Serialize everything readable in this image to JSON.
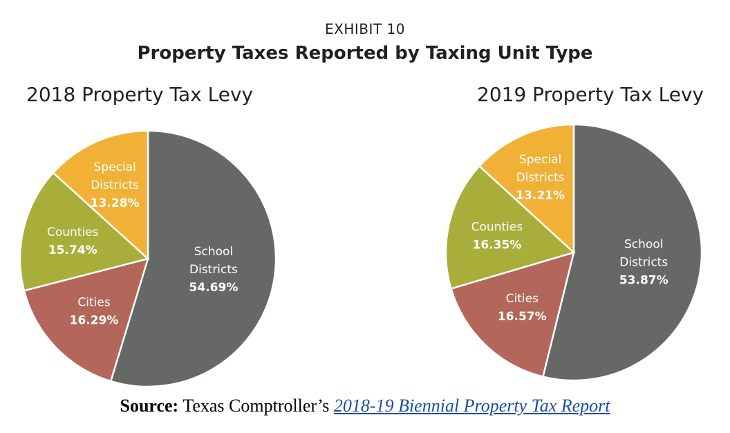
{
  "header": {
    "exhibit": "EXHIBIT 10",
    "title": "Property Taxes Reported by Taxing Unit Type"
  },
  "colors": {
    "school": "#666866",
    "cities": "#b3665a",
    "counties": "#a9ad3a",
    "special": "#f1b137"
  },
  "chart_data": [
    {
      "type": "pie",
      "title": "2018 Property Tax Levy",
      "slices": [
        {
          "key": "school",
          "name": "School Districts",
          "lines": [
            "School",
            "Districts"
          ],
          "value": 54.69,
          "pct_label": "54.69%"
        },
        {
          "key": "cities",
          "name": "Cities",
          "lines": [
            "Cities"
          ],
          "value": 16.29,
          "pct_label": "16.29%"
        },
        {
          "key": "counties",
          "name": "Counties",
          "lines": [
            "Counties"
          ],
          "value": 15.74,
          "pct_label": "15.74%"
        },
        {
          "key": "special",
          "name": "Special Districts",
          "lines": [
            "Special",
            "Districts"
          ],
          "value": 13.28,
          "pct_label": "13.28%"
        }
      ]
    },
    {
      "type": "pie",
      "title": "2019 Property Tax Levy",
      "slices": [
        {
          "key": "school",
          "name": "School Districts",
          "lines": [
            "School",
            "Districts"
          ],
          "value": 53.87,
          "pct_label": "53.87%"
        },
        {
          "key": "cities",
          "name": "Cities",
          "lines": [
            "Cities"
          ],
          "value": 16.57,
          "pct_label": "16.57%"
        },
        {
          "key": "counties",
          "name": "Counties",
          "lines": [
            "Counties"
          ],
          "value": 16.35,
          "pct_label": "16.35%"
        },
        {
          "key": "special",
          "name": "Special Districts",
          "lines": [
            "Special",
            "Districts"
          ],
          "value": 13.21,
          "pct_label": "13.21%"
        }
      ]
    }
  ],
  "source": {
    "label": "Source:",
    "text": "Texas Comptroller’s",
    "link_text": "2018-19 Biennial Property Tax Report"
  }
}
